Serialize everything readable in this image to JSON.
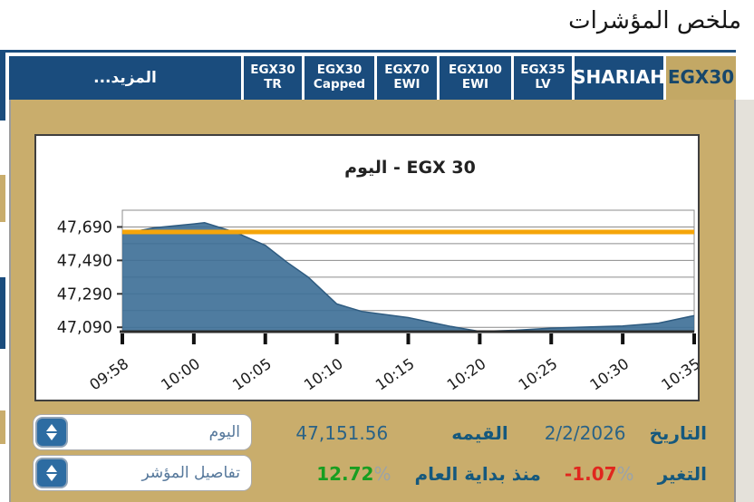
{
  "header": {
    "title": "ملخص المؤشرات"
  },
  "tabs": {
    "items": [
      {
        "label": "EGX30",
        "active": true
      },
      {
        "label": "SHARIAH",
        "big": true
      },
      {
        "label": "EGX35\nLV"
      },
      {
        "label": "EGX100\nEWI"
      },
      {
        "label": "EGX70\nEWI"
      },
      {
        "label": "EGX30\nCapped"
      },
      {
        "label": "EGX30\nTR"
      },
      {
        "label": "المزيد...",
        "more": true
      }
    ]
  },
  "chart_data": {
    "type": "area",
    "title": "EGX 30  - اليوم",
    "x_categories": [
      "09:58",
      "10:00",
      "10:05",
      "10:10",
      "10:15",
      "10:20",
      "10:25",
      "10:30",
      "10:35"
    ],
    "y_tick_labels": [
      47690,
      47490,
      47290,
      47090
    ],
    "gridline_step": 100,
    "ylim": [
      47064,
      47790
    ],
    "grid": true,
    "reference_line": {
      "value": 47660,
      "color": "#F5A50A",
      "meaning": "previous close level"
    },
    "series": [
      {
        "name": "EGX 30",
        "fill_color": "#3C6E96",
        "edge_color": "#2E5B80",
        "values_at_ticks": [
          47650,
          47708,
          47580,
          47230,
          47148,
          47065,
          47085,
          47098,
          47160
        ]
      }
    ],
    "dense_points": [
      [
        0,
        47650
      ],
      [
        0.45,
        47685
      ],
      [
        1,
        47708
      ],
      [
        1.15,
        47715
      ],
      [
        1.6,
        47655
      ],
      [
        2,
        47580
      ],
      [
        2.3,
        47480
      ],
      [
        2.6,
        47390
      ],
      [
        3,
        47230
      ],
      [
        3.35,
        47185
      ],
      [
        4,
        47148
      ],
      [
        4.6,
        47095
      ],
      [
        5,
        47065
      ],
      [
        5.5,
        47072
      ],
      [
        6,
        47085
      ],
      [
        7,
        47098
      ],
      [
        7.5,
        47115
      ],
      [
        8,
        47160
      ]
    ]
  },
  "info": {
    "date_label": "التاريخ",
    "date_value": "2/2/2026",
    "value_label": "القيمه",
    "value_value": "47,151.56",
    "change_label": "التغير",
    "change_value": "-1.07",
    "change_pct": "%",
    "ytd_label": "منذ بداية العام",
    "ytd_value": "12.72",
    "ytd_pct": "%",
    "period_select": "اليوم",
    "details_select": "تفاصيل المؤشر"
  },
  "colors": {
    "tab_navy": "#1A4C7D",
    "active_tab_gold": "#C3A865",
    "panel_gold": "#C9AD6C",
    "label_navy": "#15587D",
    "value_navy": "#2A6286",
    "negative_red": "#E0271E",
    "positive_green": "#189E21",
    "percent_gray": "#9BA3A8",
    "area_blue": "#3C6E96",
    "reference_orange": "#F5A50A"
  }
}
